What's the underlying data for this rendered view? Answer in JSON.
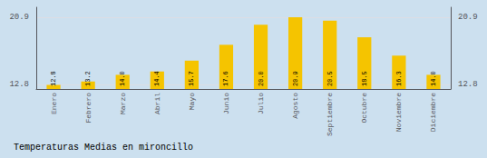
{
  "chart_data": {
    "type": "bar",
    "title": "Temperaturas Medias en mironcillo",
    "categories": [
      "Enero",
      "Febrero",
      "Marzo",
      "Abril",
      "Mayo",
      "Junio",
      "Julio",
      "Agosto",
      "Septiembre",
      "Octubre",
      "Noviembre",
      "Diciembre"
    ],
    "values": [
      12.8,
      13.2,
      14.0,
      14.4,
      15.7,
      17.6,
      20.0,
      20.9,
      20.5,
      18.5,
      16.3,
      14.0
    ],
    "value_labels": [
      "12.8",
      "13.2",
      "14.0",
      "14.4",
      "15.7",
      "17.6",
      "20.0",
      "20.9",
      "20.5",
      "18.5",
      "16.3",
      "14.0"
    ],
    "data_labels": true,
    "color": "#F5C400",
    "ylim": [
      12.3,
      22.1
    ],
    "yticks": [
      12.8,
      20.9
    ],
    "grid": true
  }
}
